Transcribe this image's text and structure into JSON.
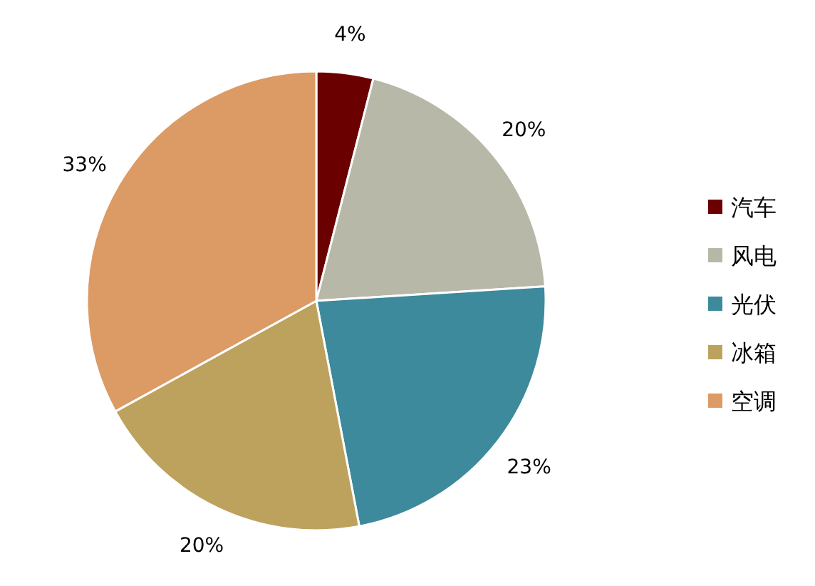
{
  "chart_data": {
    "type": "pie",
    "categories": [
      "汽车",
      "风电",
      "光伏",
      "冰箱",
      "空调"
    ],
    "values": [
      4,
      20,
      23,
      20,
      33
    ],
    "colors": [
      "#6b0000",
      "#b8b8a8",
      "#3c8a9c",
      "#bda25e",
      "#dc9a64"
    ],
    "value_labels": [
      "4%",
      "20%",
      "23%",
      "20%",
      "33%"
    ],
    "legend": "right"
  }
}
